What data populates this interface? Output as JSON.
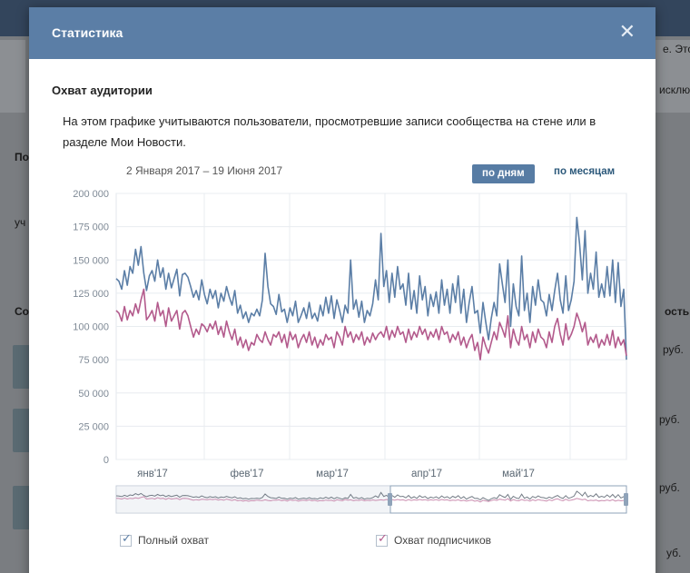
{
  "modal": {
    "title": "Статистика",
    "close_icon": "close-icon",
    "section_title": "Охват аудитории",
    "description": "На этом графике учитываются пользователи, просмотревшие записи сообщества на стене или в разделе Мои Новости.",
    "date_range": "2 Января 2017 – 19 Июня 2017",
    "btn_days": "по дням",
    "btn_months": "по месяцам",
    "legend": [
      {
        "label": "Полный охват",
        "checked": true,
        "color": "#5b7ea6"
      },
      {
        "label": "Охват подписчиков",
        "checked": true,
        "color": "#b35a8c"
      }
    ]
  },
  "background": {
    "fragments": [
      "е. Это",
      "исклю",
      "ость р",
      "руб.",
      "руб.",
      "руб.",
      "уб.",
      "По",
      "уч",
      "Со"
    ]
  },
  "chart_data": {
    "type": "line",
    "title": "",
    "ylim": [
      0,
      200000
    ],
    "yticks": [
      0,
      25000,
      50000,
      75000,
      100000,
      125000,
      150000,
      175000,
      200000
    ],
    "ytick_labels": [
      "0",
      "25 000",
      "50 000",
      "75 000",
      "100 000",
      "125 000",
      "150 000",
      "175 000",
      "200 000"
    ],
    "xlabels": [
      "янв'17",
      "фев'17",
      "мар'17",
      "апр'17",
      "май'17"
    ],
    "series": [
      {
        "name": "Полный охват",
        "color": "#5b7ea6",
        "values": [
          136000,
          134000,
          128000,
          142000,
          131000,
          145000,
          140000,
          158000,
          146000,
          160000,
          140000,
          127000,
          138000,
          142000,
          134000,
          150000,
          137000,
          144000,
          128000,
          140000,
          129000,
          136000,
          143000,
          123000,
          139000,
          140000,
          137000,
          130000,
          122000,
          127000,
          120000,
          135000,
          124000,
          117000,
          128000,
          121000,
          127000,
          114000,
          125000,
          119000,
          130000,
          122000,
          116000,
          127000,
          110000,
          116000,
          106000,
          111000,
          103000,
          110000,
          108000,
          113000,
          108000,
          120000,
          155000,
          130000,
          117000,
          115000,
          109000,
          124000,
          111000,
          113000,
          103000,
          114000,
          108000,
          119000,
          103000,
          108000,
          114000,
          106000,
          118000,
          106000,
          110000,
          104000,
          116000,
          108000,
          122000,
          110000,
          123000,
          106000,
          120000,
          112000,
          103000,
          116000,
          110000,
          150000,
          113000,
          120000,
          107000,
          119000,
          103000,
          112000,
          108000,
          117000,
          135000,
          120000,
          170000,
          130000,
          142000,
          118000,
          140000,
          122000,
          145000,
          128000,
          132000,
          116000,
          140000,
          113000,
          127000,
          110000,
          138000,
          120000,
          130000,
          108000,
          124000,
          115000,
          126000,
          110000,
          135000,
          116000,
          128000,
          110000,
          132000,
          118000,
          138000,
          110000,
          128000,
          103000,
          118000,
          130000,
          110000,
          112000,
          95000,
          118000,
          103000,
          90000,
          106000,
          118000,
          108000,
          147000,
          132000,
          118000,
          150000,
          100000,
          132000,
          115000,
          108000,
          153000,
          112000,
          125000,
          103000,
          130000,
          116000,
          135000,
          120000,
          118000,
          108000,
          124000,
          112000,
          127000,
          140000,
          120000,
          110000,
          138000,
          112000,
          120000,
          134000,
          182000,
          162000,
          135000,
          172000,
          125000,
          140000,
          128000,
          156000,
          122000,
          132000,
          122000,
          145000,
          123000,
          150000,
          118000,
          148000,
          115000,
          128000,
          75000
        ]
      },
      {
        "name": "Охват подписчиков",
        "color": "#b35a8c",
        "values": [
          112000,
          110000,
          104000,
          115000,
          105000,
          112000,
          108000,
          117000,
          110000,
          120000,
          128000,
          105000,
          108000,
          112000,
          104000,
          118000,
          108000,
          112000,
          100000,
          114000,
          104000,
          108000,
          112000,
          98000,
          110000,
          112000,
          108000,
          100000,
          92000,
          98000,
          94000,
          102000,
          100000,
          96000,
          102000,
          98000,
          104000,
          94000,
          100000,
          92000,
          104000,
          96000,
          90000,
          98000,
          86000,
          92000,
          84000,
          90000,
          82000,
          88000,
          86000,
          94000,
          90000,
          88000,
          96000,
          90000,
          86000,
          94000,
          92000,
          96000,
          88000,
          94000,
          84000,
          96000,
          90000,
          94000,
          84000,
          90000,
          94000,
          88000,
          96000,
          86000,
          92000,
          84000,
          90000,
          86000,
          94000,
          90000,
          92000,
          84000,
          96000,
          92000,
          86000,
          100000,
          92000,
          96000,
          88000,
          94000,
          90000,
          96000,
          86000,
          92000,
          88000,
          95000,
          90000,
          94000,
          96000,
          92000,
          100000,
          90000,
          97000,
          92000,
          100000,
          94000,
          96000,
          88000,
          98000,
          90000,
          96000,
          92000,
          100000,
          94000,
          98000,
          90000,
          96000,
          92000,
          98000,
          90000,
          100000,
          94000,
          96000,
          88000,
          94000,
          90000,
          96000,
          86000,
          92000,
          84000,
          90000,
          94000,
          82000,
          88000,
          75000,
          92000,
          85000,
          80000,
          88000,
          96000,
          90000,
          103000,
          98000,
          92000,
          108000,
          84000,
          98000,
          90000,
          86000,
          100000,
          90000,
          94000,
          84000,
          96000,
          88000,
          98000,
          92000,
          90000,
          84000,
          96000,
          88000,
          100000,
          106000,
          94000,
          86000,
          102000,
          90000,
          94000,
          100000,
          110000,
          104000,
          96000,
          103000,
          86000,
          92000,
          88000,
          94000,
          84000,
          90000,
          86000,
          94000,
          86000,
          97000,
          84000,
          92000,
          86000,
          90000,
          78000
        ]
      }
    ]
  }
}
